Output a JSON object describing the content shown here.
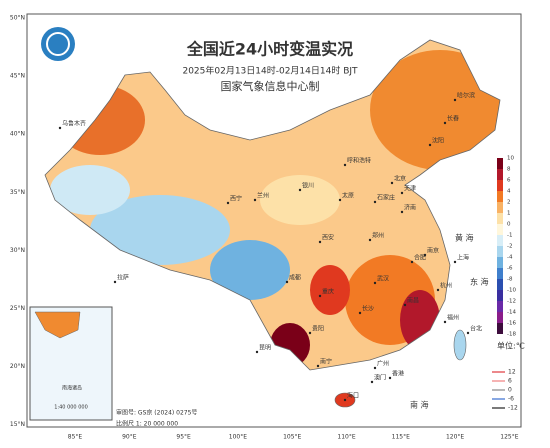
{
  "header": {
    "title": "全国近24小时变温实况",
    "subtitle": "2025年02月13日14时-02月14日14时 BJT",
    "agency": "国家气象信息中心制"
  },
  "axes": {
    "lat_labels": [
      "50°N",
      "45°N",
      "40°N",
      "35°N",
      "30°N",
      "25°N",
      "20°N",
      "15°N"
    ],
    "lon_labels": [
      "85°E",
      "90°E",
      "95°E",
      "100°E",
      "105°E",
      "110°E",
      "115°E",
      "120°E",
      "125°E"
    ]
  },
  "legend": {
    "unit": "单位:℃",
    "labels": [
      "10",
      "8",
      "6",
      "4",
      "2",
      "1",
      "0",
      "-1",
      "-2",
      "-4",
      "-6",
      "-8",
      "-10",
      "-12",
      "-14",
      "-16",
      "-18"
    ],
    "colors": [
      "#7a0018",
      "#b2182b",
      "#e0391f",
      "#f27a24",
      "#f9b264",
      "#fde1a8",
      "#fff7dc",
      "#d8eef7",
      "#a9d6ee",
      "#6fb2e0",
      "#3f7fcc",
      "#2b4fb0",
      "#3a2fa0",
      "#6a2aa8",
      "#8a1d8a",
      "#3d0d3d"
    ],
    "contours": [
      {
        "label": "12",
        "color": "#e0393e"
      },
      {
        "label": "6",
        "color": "#f08080"
      },
      {
        "label": "0",
        "color": "#888888"
      },
      {
        "label": "-6",
        "color": "#3a6fd0"
      },
      {
        "label": "-12",
        "color": "#222222"
      }
    ]
  },
  "cities": [
    "哈尔滨",
    "长春",
    "沈阳",
    "北京",
    "天津",
    "呼和浩特",
    "石家庄",
    "太原",
    "济南",
    "银川",
    "兰州",
    "西宁",
    "郑州",
    "西安",
    "合肥",
    "南京",
    "上海",
    "武汉",
    "杭州",
    "成都",
    "重庆",
    "长沙",
    "南昌",
    "贵阳",
    "福州",
    "昆明",
    "南宁",
    "广州",
    "香港",
    "澳门",
    "台北",
    "海口",
    "拉萨",
    "乌鲁木齐"
  ],
  "seas": [
    "黄 海",
    "东 海",
    "南 海"
  ],
  "inset": {
    "scale": "1:40 000 000",
    "label": "南海诸岛"
  },
  "footer": {
    "approval": "审图号: GS京 (2024) 0275号",
    "scale": "比例尺 1: 20 000 000"
  }
}
